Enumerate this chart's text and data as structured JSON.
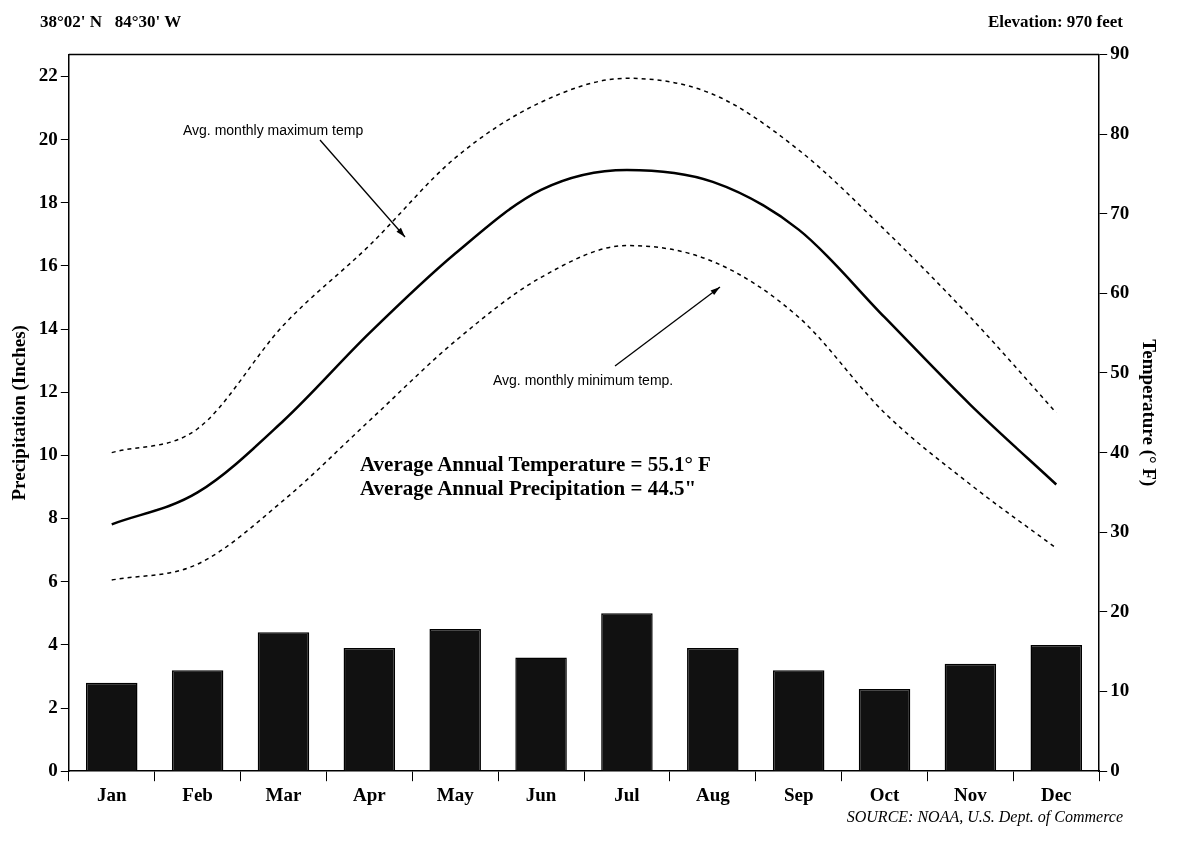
{
  "chart_data": {
    "type": "bar",
    "title": "38°02' N   84°30' W",
    "subtitle": "Elevation: 970 feet",
    "ylabel": "Precipitation (Inches)",
    "y2label": "Temperature (° F)",
    "categories": [
      "Jan",
      "Feb",
      "Mar",
      "Apr",
      "May",
      "Jun",
      "Jul",
      "Aug",
      "Sep",
      "Oct",
      "Nov",
      "Dec"
    ],
    "series": [
      {
        "color": "#111111",
        "values": [
          2.8,
          3.2,
          4.4,
          3.9,
          4.5,
          3.6,
          5.0,
          3.9,
          3.2,
          2.6,
          3.4,
          4.0
        ]
      },
      {
        "type": "line",
        "axis": "y2",
        "color": "#000000",
        "line_style": "dashed",
        "values": [
          40,
          43,
          56,
          66,
          77,
          84,
          87,
          85,
          78,
          68,
          57,
          45
        ]
      },
      {
        "type": "line",
        "axis": "y2",
        "color": "#000000",
        "line_style": "solid",
        "values": [
          31,
          35,
          44,
          55,
          65,
          73,
          75.5,
          74,
          68,
          57,
          46,
          36
        ]
      },
      {
        "type": "line",
        "axis": "y2",
        "color": "#000000",
        "line_style": "dashed",
        "values": [
          24,
          26,
          34,
          44,
          54,
          62,
          66,
          64,
          57,
          45,
          36,
          28
        ]
      }
    ],
    "ylim": [
      0,
      22.7
    ],
    "yticks": [
      0,
      2,
      4,
      6,
      8,
      10,
      12,
      14,
      16,
      18,
      20,
      22
    ],
    "y2lim": [
      0,
      90
    ],
    "y2ticks": [
      0,
      10,
      20,
      30,
      40,
      50,
      60,
      70,
      80,
      90
    ],
    "grid": false,
    "legend": false,
    "marker": "none",
    "annotations": [
      "Avg. monthly maximum temp",
      "Avg. monthly minimum temp.",
      "Average Annual Temperature = 55.1° F",
      "Average Annual Precipitation = 44.5\"",
      "SOURCE: NOAA, U.S. Dept. of Commerce"
    ]
  }
}
